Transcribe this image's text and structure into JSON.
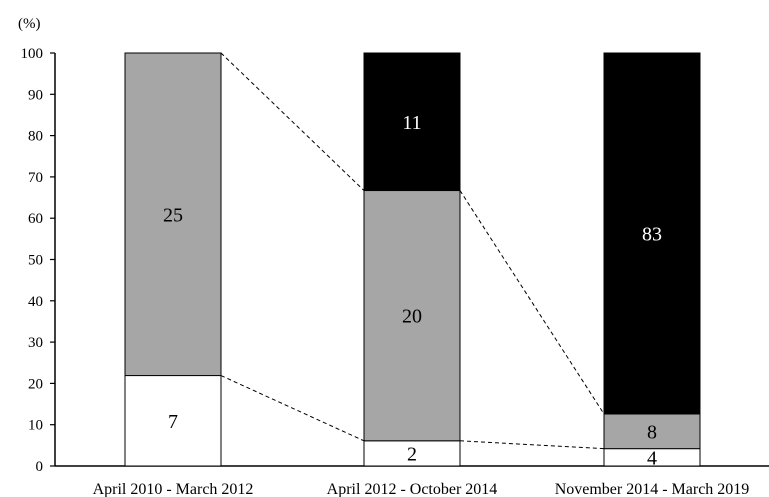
{
  "chart_data": {
    "type": "bar",
    "stacked": true,
    "percent_stacked": true,
    "title": "",
    "xlabel": "",
    "ylabel": "",
    "y_unit_label": "(%)",
    "ylim": [
      0,
      100
    ],
    "yticks": [
      0,
      10,
      20,
      30,
      40,
      50,
      60,
      70,
      80,
      90,
      100
    ],
    "grid": false,
    "legend": "none",
    "connector_lines": "dashed",
    "categories": [
      "April 2010 - March 2012",
      "April 2012 - October 2014",
      "November 2014 - March 2019"
    ],
    "series": [
      {
        "color": "#ffffff",
        "text_color": "#000000",
        "counts": [
          7,
          2,
          4
        ],
        "percent": [
          21.9,
          6.1,
          4.2
        ]
      },
      {
        "color": "#a6a6a6",
        "text_color": "#000000",
        "counts": [
          25,
          20,
          8
        ],
        "percent": [
          78.1,
          60.6,
          8.4
        ]
      },
      {
        "color": "#000000",
        "text_color": "#ffffff",
        "counts": [
          0,
          11,
          83
        ],
        "percent": [
          0,
          33.3,
          87.4
        ]
      }
    ]
  }
}
